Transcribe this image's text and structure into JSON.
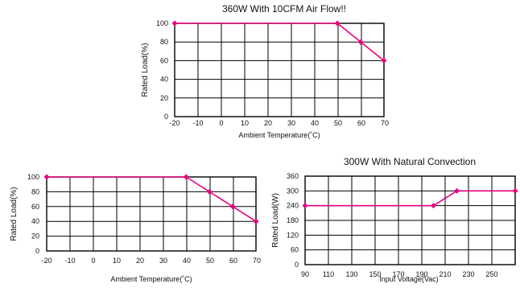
{
  "chart_data": [
    {
      "type": "line",
      "title": "360W With 10CFM Air Flow!!",
      "xlabel": "Ambient Temperature(˚C)",
      "ylabel": "Rated Load(%)",
      "xlim": [
        -20,
        70
      ],
      "ylim": [
        0,
        100
      ],
      "x_ticks": [
        -20,
        -10,
        0,
        10,
        20,
        30,
        40,
        50,
        60,
        70
      ],
      "y_ticks": [
        0,
        20,
        40,
        60,
        80,
        100
      ],
      "grid": true,
      "series": [
        {
          "x": [
            -20,
            50,
            60,
            70
          ],
          "y": [
            100,
            100,
            80,
            60
          ],
          "color": "#e6007e"
        }
      ]
    },
    {
      "type": "line",
      "title": "",
      "xlabel": "Ambient Temperature(˚C)",
      "ylabel": "Rated Load(%)",
      "xlim": [
        -20,
        70
      ],
      "ylim": [
        0,
        100
      ],
      "x_ticks": [
        -20,
        -10,
        0,
        10,
        20,
        30,
        40,
        50,
        60,
        70
      ],
      "y_ticks": [
        0,
        20,
        40,
        60,
        80,
        100
      ],
      "grid": true,
      "series": [
        {
          "x": [
            -20,
            40,
            50,
            60,
            70
          ],
          "y": [
            100,
            100,
            80,
            60,
            40
          ],
          "color": "#e6007e"
        }
      ]
    },
    {
      "type": "line",
      "title": "300W With Natural Convection",
      "xlabel": "Input Voltage(Vac)",
      "ylabel": "Rated Load(W)",
      "xlim": [
        90,
        270
      ],
      "ylim": [
        0,
        360
      ],
      "x_ticks": [
        90,
        110,
        130,
        150,
        170,
        190,
        210,
        230,
        250
      ],
      "y_ticks": [
        0,
        60,
        120,
        180,
        240,
        300,
        360
      ],
      "grid": true,
      "series": [
        {
          "x": [
            90,
            200,
            220,
            270
          ],
          "y": [
            240,
            240,
            300,
            300
          ],
          "color": "#e6007e"
        }
      ]
    }
  ]
}
